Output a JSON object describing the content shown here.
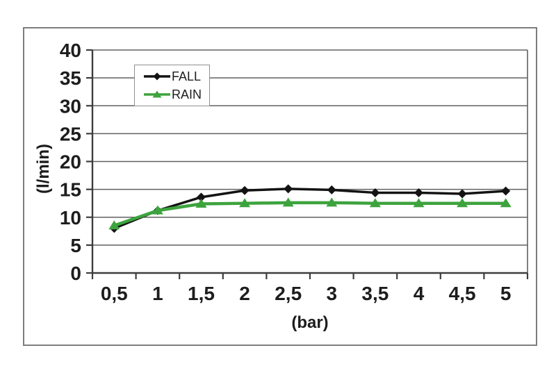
{
  "chart_data": {
    "type": "line",
    "title": "",
    "xlabel": "(bar)",
    "ylabel": "(l/min)",
    "x": [
      0.5,
      1,
      1.5,
      2,
      2.5,
      3,
      3.5,
      4,
      4.5,
      5
    ],
    "x_tick_labels": [
      "0,5",
      "1",
      "1,5",
      "2",
      "2,5",
      "3",
      "3,5",
      "4",
      "4,5",
      "5"
    ],
    "y_ticks": [
      0,
      5,
      10,
      15,
      20,
      25,
      30,
      35,
      40
    ],
    "ylim": [
      0,
      40
    ],
    "grid": true,
    "legend_position": "inside-top-left",
    "series": [
      {
        "name": "FALL",
        "marker": "diamond",
        "color": "#131313",
        "line_width": 3.5,
        "values": [
          8,
          11.2,
          13.6,
          14.8,
          15.1,
          14.9,
          14.4,
          14.4,
          14.2,
          14.7
        ]
      },
      {
        "name": "RAIN",
        "marker": "triangle",
        "color": "#3da33d",
        "line_width": 4.5,
        "values": [
          8.5,
          11.2,
          12.4,
          12.5,
          12.6,
          12.6,
          12.5,
          12.5,
          12.5,
          12.5
        ]
      }
    ],
    "colors": {
      "grid": "#606060",
      "axis": "#3d3d3d",
      "frame_border": "#7d7d7d",
      "text": "#1d1d1d",
      "plot_background": "#ffffff"
    }
  }
}
